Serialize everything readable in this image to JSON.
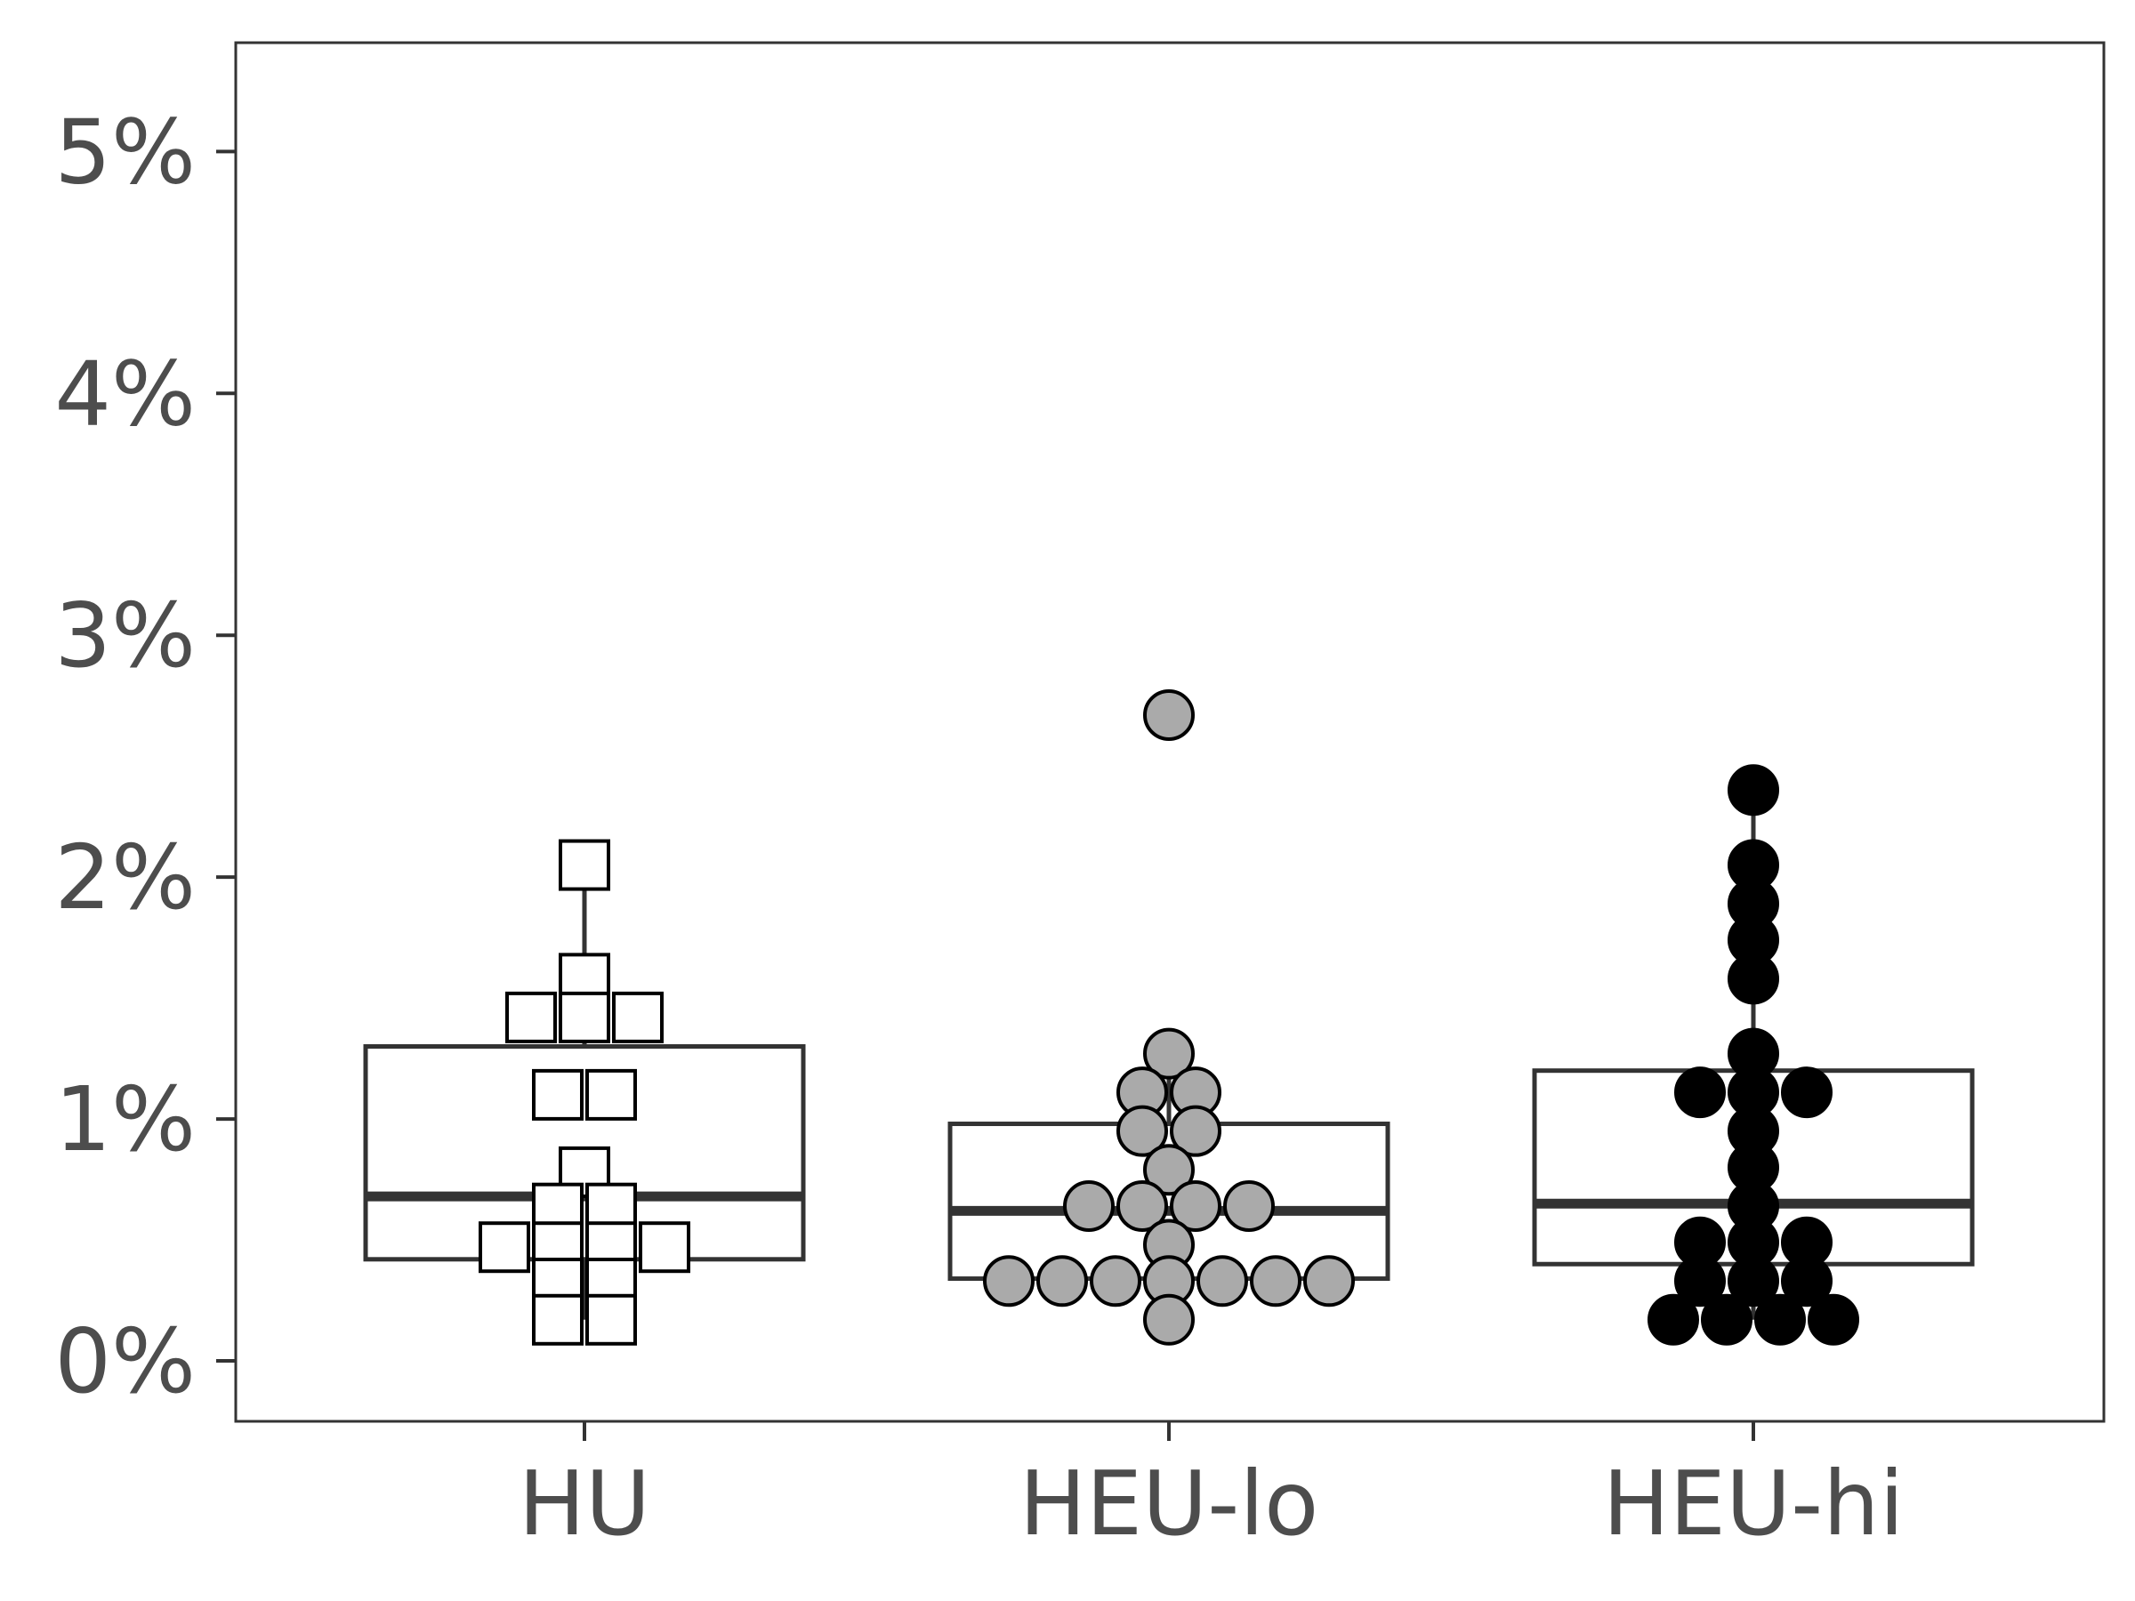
{
  "chart_data": {
    "type": "boxplot-dotplot",
    "title": "",
    "xlabel": "",
    "ylabel": "",
    "categories": [
      "HU",
      "HEU-lo",
      "HEU-hi"
    ],
    "y_ticks": [
      {
        "value": 0,
        "label": "0%"
      },
      {
        "value": 1,
        "label": "1%"
      },
      {
        "value": 2,
        "label": "2%"
      },
      {
        "value": 3,
        "label": "3%"
      },
      {
        "value": 4,
        "label": "4%"
      },
      {
        "value": 5,
        "label": "5%"
      }
    ],
    "ylim": [
      -0.25,
      5.45
    ],
    "grid": false,
    "legend": "none",
    "groups": [
      {
        "category": "HU",
        "marker": "square",
        "fill": "#ffffff",
        "box": {
          "q1": 0.42,
          "median": 0.68,
          "q3": 1.3,
          "whisker_low": 0.17,
          "whisker_high": 2.05
        },
        "points": [
          2.05,
          1.58,
          1.42,
          1.42,
          1.42,
          1.1,
          1.1,
          0.78,
          0.63,
          0.63,
          0.47,
          0.47,
          0.47,
          0.47,
          0.32,
          0.32,
          0.17,
          0.17
        ]
      },
      {
        "category": "HEU-lo",
        "marker": "circle",
        "fill": "#aaaaaa",
        "box": {
          "q1": 0.34,
          "median": 0.62,
          "q3": 0.98,
          "whisker_low": 0.17,
          "whisker_high": 1.27
        },
        "points": [
          2.67,
          1.27,
          1.11,
          1.11,
          0.95,
          0.95,
          0.79,
          0.64,
          0.64,
          0.64,
          0.64,
          0.48,
          0.33,
          0.33,
          0.33,
          0.33,
          0.33,
          0.33,
          0.33,
          0.17
        ]
      },
      {
        "category": "HEU-hi",
        "marker": "circle",
        "fill": "#000000",
        "box": {
          "q1": 0.4,
          "median": 0.65,
          "q3": 1.2,
          "whisker_low": 0.17,
          "whisker_high": 2.36
        },
        "points": [
          2.36,
          2.05,
          1.89,
          1.74,
          1.58,
          1.27,
          1.11,
          1.11,
          1.11,
          0.95,
          0.8,
          0.64,
          0.49,
          0.49,
          0.49,
          0.33,
          0.33,
          0.33,
          0.17,
          0.17,
          0.17,
          0.17
        ]
      }
    ]
  }
}
